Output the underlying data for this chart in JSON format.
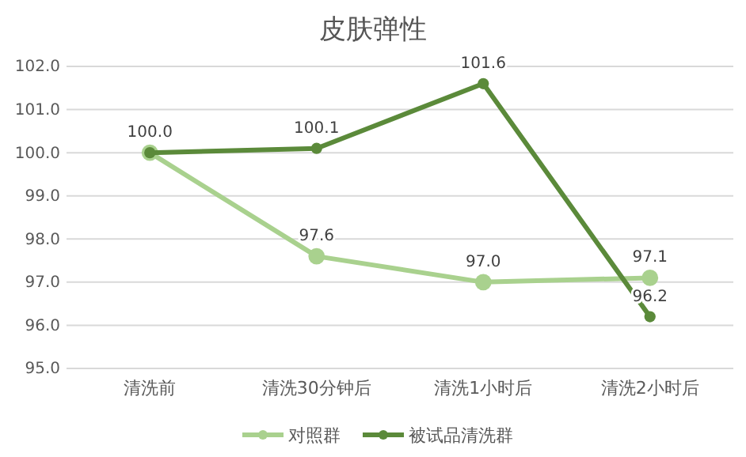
{
  "chart_data": {
    "type": "line",
    "title": "皮肤弹性",
    "categories": [
      "清洗前",
      "清洗30分钟后",
      "清洗1小时后",
      "清洗2小时后"
    ],
    "series": [
      {
        "name": "对照群",
        "color": "#a9d18e",
        "values": [
          100.0,
          97.6,
          97.0,
          97.1
        ],
        "value_labels": [
          null,
          "97.6",
          "97.0",
          "97.1"
        ]
      },
      {
        "name": "被试品清洗群",
        "color": "#5b8a3a",
        "values": [
          100.0,
          100.1,
          101.6,
          96.2
        ],
        "value_labels": [
          "100.0",
          "100.1",
          "101.6",
          "96.2"
        ]
      }
    ],
    "ylim": [
      95,
      102
    ],
    "yticks": [
      {
        "value": 95,
        "label": "95.0"
      },
      {
        "value": 96,
        "label": "96.0"
      },
      {
        "value": 97,
        "label": "97.0"
      },
      {
        "value": 98,
        "label": "98.0"
      },
      {
        "value": 99,
        "label": "99.0"
      },
      {
        "value": 100,
        "label": "100.0"
      },
      {
        "value": 101,
        "label": "101.0"
      },
      {
        "value": 102,
        "label": "102.0"
      }
    ],
    "grid": "y",
    "legend": "bottom",
    "marker": "circle",
    "line_style": "solid"
  }
}
